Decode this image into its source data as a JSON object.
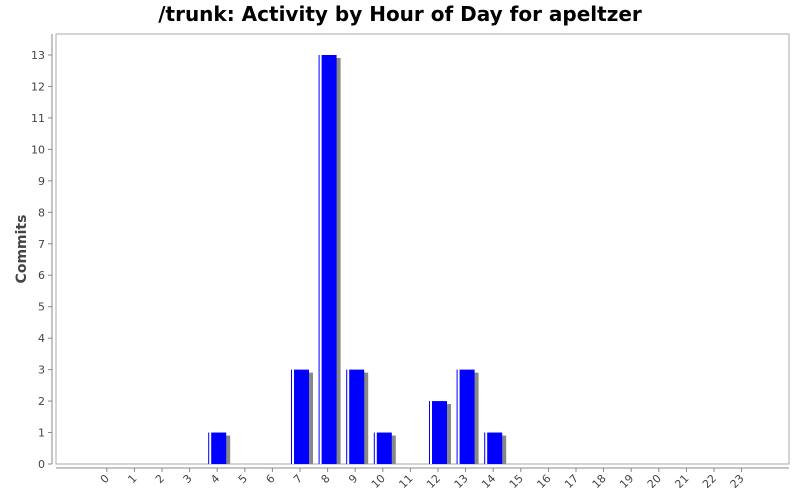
{
  "chart_data": {
    "type": "bar",
    "title": "/trunk: Activity by Hour of Day for apeltzer",
    "xlabel": "",
    "ylabel": "Commits",
    "categories": [
      "0",
      "1",
      "2",
      "3",
      "4",
      "5",
      "6",
      "7",
      "8",
      "9",
      "10",
      "11",
      "12",
      "13",
      "14",
      "15",
      "16",
      "17",
      "18",
      "19",
      "20",
      "21",
      "22",
      "23"
    ],
    "values": [
      0,
      0,
      0,
      0,
      1,
      0,
      0,
      3,
      13,
      3,
      1,
      0,
      2,
      3,
      1,
      0,
      0,
      0,
      0,
      0,
      0,
      0,
      0,
      0
    ],
    "ylim": [
      0,
      13
    ],
    "yticks": [
      0,
      1,
      2,
      3,
      4,
      5,
      6,
      7,
      8,
      9,
      10,
      11,
      12,
      13
    ],
    "grid": false,
    "legend": "none",
    "colors": {
      "bar": "#0000ff",
      "bar_highlight": "#ffffff",
      "bar_shadow": "#888888",
      "axis": "#888888",
      "text": "#444444"
    }
  }
}
